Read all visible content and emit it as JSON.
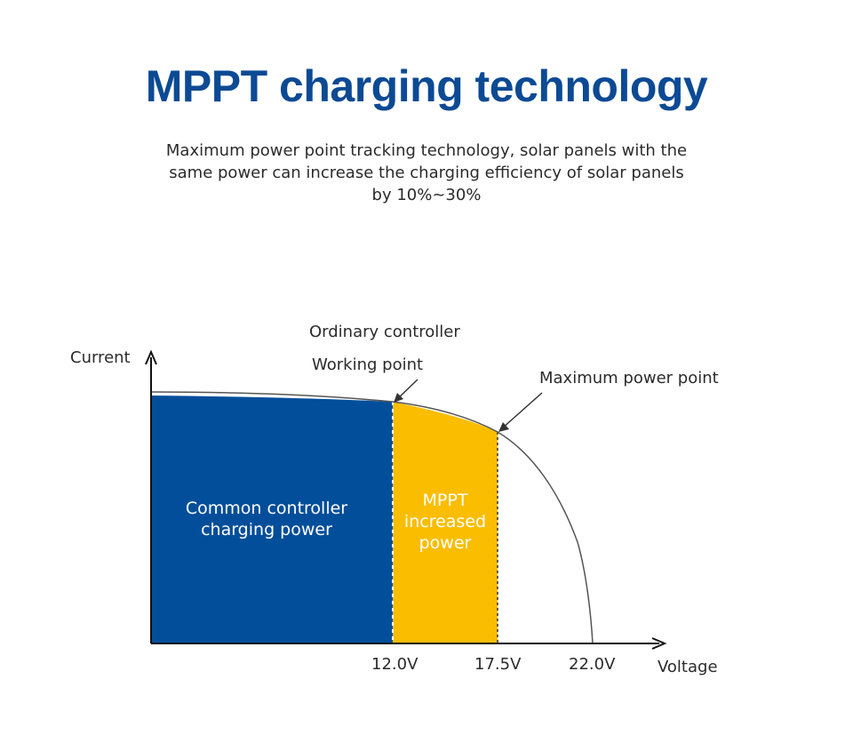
{
  "title": "MPPT charging technology",
  "subtitle": "Maximum power point tracking technology, solar panels with the same power can increase the charging efficiency of solar panels by 10%~30%",
  "labels": {
    "y_axis": "Current",
    "x_axis": "Voltage",
    "ordinary_controller": "Ordinary controller",
    "working_point": "Working point",
    "max_power_point": "Maximum power point",
    "common_region": "Common controller charging power",
    "mppt_region": "MPPT increased power"
  },
  "ticks": [
    "12.0V",
    "17.5V",
    "22.0V"
  ],
  "colors": {
    "title": "#0c4a94",
    "common_fill": "#034e9a",
    "mppt_fill": "#fbbd00",
    "curve": "#555555",
    "axis": "#111111"
  }
}
